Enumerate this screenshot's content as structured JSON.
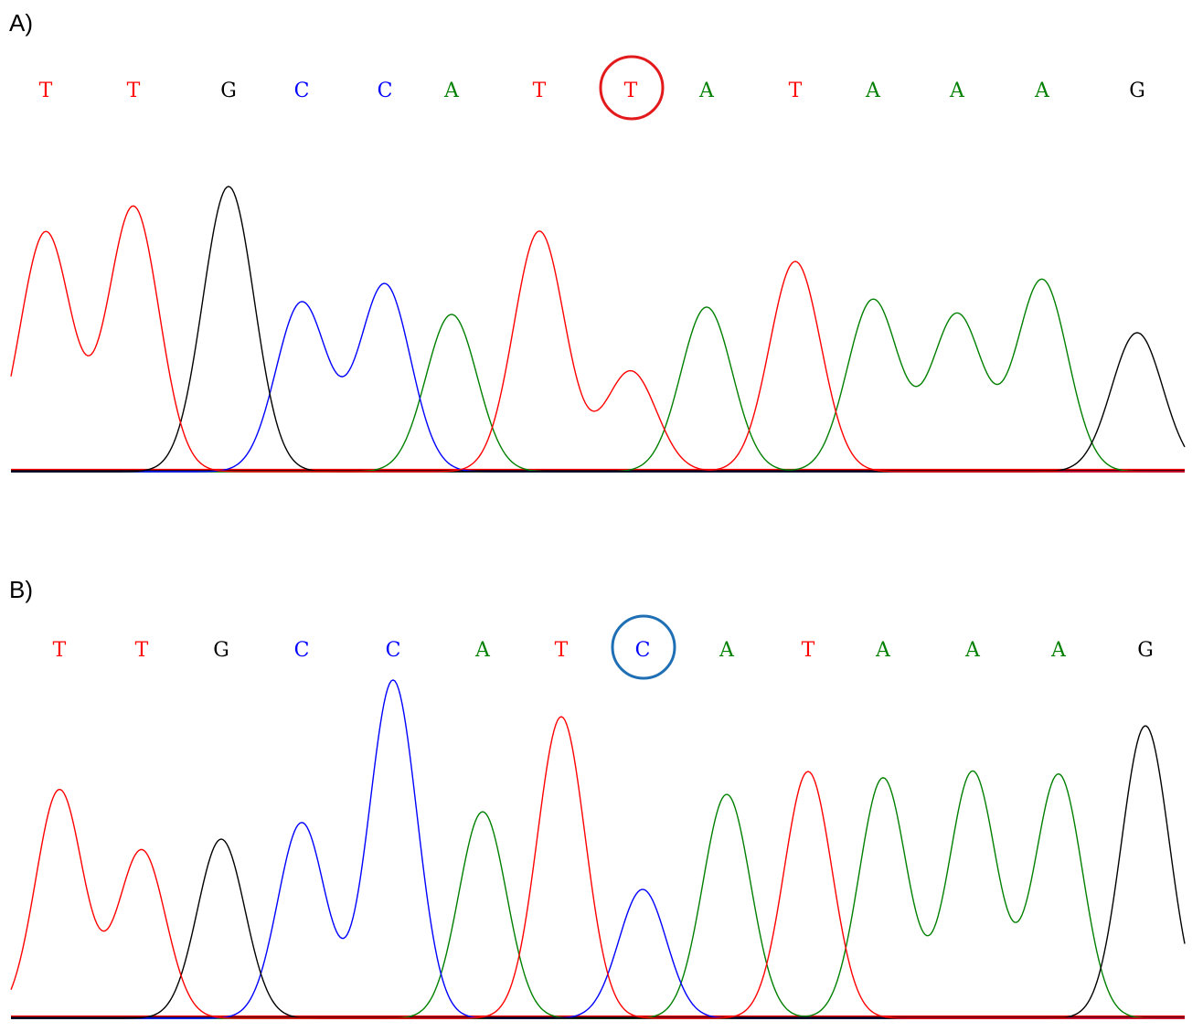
{
  "colors": {
    "A": "#008000",
    "C": "#0000ff",
    "G": "#000000",
    "T": "#ff0000",
    "highlight_a": "#e31a1c",
    "highlight_b": "#1f6fb5"
  },
  "chart_data": [
    {
      "type": "line",
      "panel_label": "A)",
      "bases": [
        "T",
        "T",
        "G",
        "C",
        "C",
        "A",
        "T",
        "T",
        "A",
        "T",
        "A",
        "A",
        "A",
        "G"
      ],
      "peak_heights": [
        262,
        290,
        312,
        185,
        205,
        172,
        263,
        110,
        180,
        230,
        188,
        172,
        210,
        152
      ],
      "highlighted_base_index": 7,
      "highlight_color": "#e31a1c",
      "ylim": [
        0,
        320
      ]
    },
    {
      "type": "line",
      "panel_label": "B)",
      "bases": [
        "T",
        "T",
        "G",
        "C",
        "C",
        "A",
        "T",
        "C",
        "A",
        "T",
        "A",
        "A",
        "A",
        "G"
      ],
      "peak_heights": [
        250,
        184,
        196,
        214,
        370,
        226,
        330,
        141,
        245,
        270,
        263,
        270,
        267,
        320
      ],
      "highlighted_base_index": 7,
      "highlight_color": "#1f6fb5",
      "ylim": [
        0,
        380
      ]
    }
  ]
}
